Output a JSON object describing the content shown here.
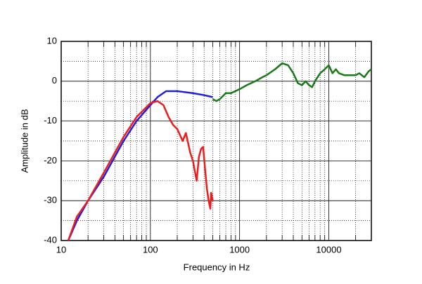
{
  "chart_data": {
    "type": "line",
    "xlabel": "Frequency in Hz",
    "ylabel": "Amplitude in dB",
    "xscale": "log",
    "xlim": [
      10,
      30000
    ],
    "ylim": [
      -40,
      10
    ],
    "xticks": [
      10,
      100,
      1000,
      10000
    ],
    "yticks": [
      10,
      0,
      -10,
      -20,
      -30,
      -40
    ],
    "x_minor_ticks": [
      20,
      30,
      40,
      50,
      60,
      70,
      80,
      90,
      200,
      300,
      400,
      500,
      600,
      700,
      800,
      900,
      2000,
      3000,
      4000,
      5000,
      6000,
      7000,
      8000,
      9000,
      20000
    ],
    "y_minor_ticks": [
      5,
      -5,
      -15,
      -25,
      -35
    ],
    "grid": true,
    "series": [
      {
        "color": "#1f1fe0",
        "x": [
          12,
          15,
          20,
          30,
          50,
          70,
          100,
          120,
          150,
          200,
          300,
          400,
          500
        ],
        "values": [
          -40,
          -35,
          -30,
          -24,
          -15,
          -10,
          -6,
          -4,
          -2.5,
          -2.5,
          -3,
          -3.5,
          -4
        ]
      },
      {
        "color": "#ee1c1c",
        "x": [
          12,
          15,
          20,
          30,
          50,
          70,
          100,
          120,
          140,
          160,
          180,
          200,
          230,
          250,
          280,
          300,
          330,
          350,
          370,
          390,
          410,
          430,
          450,
          470,
          480,
          500
        ],
        "values": [
          -40,
          -34,
          -30,
          -23,
          -14,
          -9,
          -5.5,
          -5,
          -6,
          -9,
          -11,
          -12,
          -15,
          -13,
          -18,
          -20,
          -25,
          -19,
          -17,
          -16.5,
          -22,
          -27,
          -30,
          -32,
          -28,
          -30
        ]
      },
      {
        "color": "#1a7a1a",
        "x": [
          500,
          550,
          600,
          700,
          800,
          1000,
          1200,
          1500,
          1800,
          2000,
          2500,
          3000,
          3500,
          4000,
          4500,
          5000,
          5500,
          6000,
          6500,
          7000,
          8000,
          9000,
          10000,
          11000,
          12000,
          13000,
          15000,
          18000,
          20000,
          22000,
          25000,
          28000,
          30000
        ],
        "values": [
          -4.5,
          -5,
          -4.5,
          -3,
          -3,
          -2,
          -1,
          0,
          1,
          1.5,
          3,
          4.5,
          4,
          2,
          -0.5,
          -1,
          0,
          -1,
          -1.5,
          0,
          2,
          3,
          4,
          2,
          3,
          2,
          1.5,
          1.5,
          1.5,
          2,
          1,
          2.5,
          3
        ]
      }
    ]
  }
}
